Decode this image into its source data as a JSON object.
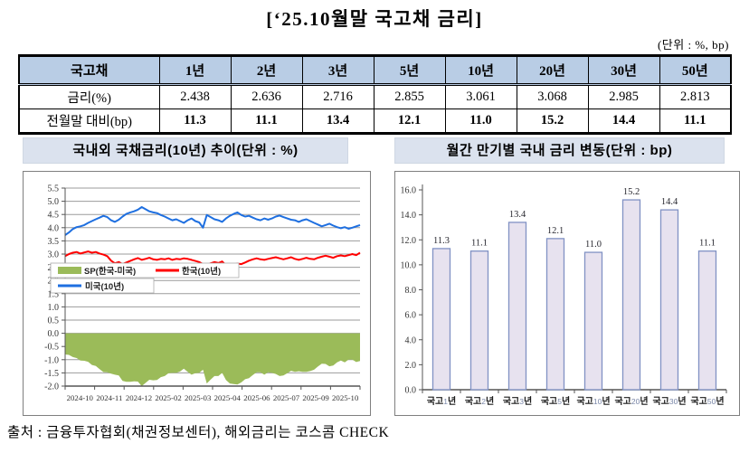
{
  "page": {
    "title": "[‘25.10월말 국고채 금리]",
    "unit_note": "(단위 : %, bp)",
    "source_note": "출처 : 금융투자협회(채권정보센터), 해외금리는 코스콤 CHECK"
  },
  "table": {
    "header": [
      "국고채",
      "1년",
      "2년",
      "3년",
      "5년",
      "10년",
      "20년",
      "30년",
      "50년"
    ],
    "rows": [
      {
        "label": "금리(%)",
        "bold": false,
        "values": [
          "2.438",
          "2.636",
          "2.716",
          "2.855",
          "3.061",
          "3.068",
          "2.985",
          "2.813"
        ]
      },
      {
        "label": "전월말 대비(bp)",
        "bold": true,
        "values": [
          "11.3",
          "11.1",
          "13.4",
          "12.1",
          "11.0",
          "15.2",
          "14.4",
          "11.1"
        ]
      }
    ],
    "header_bg": "#B9CDE5"
  },
  "left_chart": {
    "title": "국내외 국채금리(10년) 추이(단위 : %)"
  },
  "right_chart": {
    "title": "월간 만기별 국내 금리 변동(단위 : bp)"
  },
  "colors": {
    "us_line": "#1E6FE0",
    "kr_line": "#FF0000",
    "spread_area": "#9BBB59",
    "bar_fill": "#E7E2EF",
    "bar_border": "#8192C4",
    "gridline": "#9b9b9b",
    "axis": "#555555",
    "table_header_bg": "#B9CDE5",
    "panel_title_bg": "#DBE2EE"
  },
  "chart_data": [
    {
      "type": "line",
      "title": "국내외 국채금리(10년) 추이(단위 : %)",
      "ylim": [
        -2.0,
        5.5
      ],
      "ytick_step": 0.5,
      "grid": true,
      "legend_position": "inside-left",
      "x_labels": [
        "2024-10",
        "2024-11",
        "2024-12",
        "2025-02",
        "2025-03",
        "2025-04",
        "2025-06",
        "2025-07",
        "2025-09",
        "2025-10"
      ],
      "legend": [
        {
          "name": "SP(한국-미국)",
          "swatch": "area",
          "color": "#9BBB59"
        },
        {
          "name": "한국(10년)",
          "swatch": "line",
          "color": "#FF0000"
        },
        {
          "name": "미국(10년)",
          "swatch": "line",
          "color": "#1E6FE0"
        }
      ],
      "series": [
        {
          "name": "미국(10년)",
          "color": "#1E6FE0",
          "values": [
            3.72,
            3.82,
            3.95,
            4.02,
            4.05,
            4.1,
            4.18,
            4.25,
            4.32,
            4.38,
            4.45,
            4.4,
            4.28,
            4.22,
            4.3,
            4.42,
            4.52,
            4.58,
            4.62,
            4.68,
            4.78,
            4.7,
            4.62,
            4.58,
            4.55,
            4.48,
            4.42,
            4.35,
            4.28,
            4.32,
            4.25,
            4.18,
            4.28,
            4.35,
            4.25,
            4.2,
            4.0,
            4.48,
            4.4,
            4.32,
            4.28,
            4.22,
            4.35,
            4.45,
            4.52,
            4.58,
            4.48,
            4.42,
            4.45,
            4.38,
            4.32,
            4.28,
            4.35,
            4.3,
            4.35,
            4.42,
            4.46,
            4.4,
            4.35,
            4.3,
            4.28,
            4.22,
            4.28,
            4.32,
            4.25,
            4.18,
            4.12,
            4.05,
            4.1,
            4.15,
            4.08,
            4.02,
            3.98,
            4.02,
            3.96,
            4.0,
            4.05,
            4.1
          ]
        },
        {
          "name": "한국(10년)",
          "color": "#FF0000",
          "values": [
            2.92,
            3.0,
            3.05,
            3.08,
            3.02,
            3.06,
            3.1,
            3.05,
            3.08,
            3.02,
            2.98,
            2.92,
            2.75,
            2.65,
            2.7,
            2.62,
            2.68,
            2.74,
            2.8,
            2.85,
            2.78,
            2.82,
            2.86,
            2.8,
            2.78,
            2.82,
            2.8,
            2.84,
            2.78,
            2.82,
            2.8,
            2.84,
            2.82,
            2.78,
            2.74,
            2.7,
            2.62,
            2.58,
            2.65,
            2.7,
            2.66,
            2.72,
            2.58,
            2.55,
            2.6,
            2.64,
            2.62,
            2.68,
            2.75,
            2.8,
            2.84,
            2.8,
            2.78,
            2.82,
            2.85,
            2.88,
            2.84,
            2.8,
            2.84,
            2.88,
            2.82,
            2.78,
            2.82,
            2.86,
            2.82,
            2.8,
            2.86,
            2.9,
            2.94,
            2.9,
            2.86,
            2.92,
            2.95,
            2.92,
            2.96,
            3.0,
            2.96,
            3.05
          ]
        },
        {
          "name": "SP(한국-미국)",
          "color": "#9BBB59",
          "derived": "한국(10년) minus 미국(10년), drawn as area from 0"
        }
      ]
    },
    {
      "type": "bar",
      "title": "월간 만기별 국내 금리 변동(단위 : bp)",
      "categories": [
        "국고1년",
        "국고2년",
        "국고3년",
        "국고5년",
        "국고10년",
        "국고20년",
        "국고30년",
        "국고50년"
      ],
      "values": [
        11.3,
        11.1,
        13.4,
        12.1,
        11.0,
        15.2,
        14.4,
        11.1
      ],
      "value_labels": [
        "11.3",
        "11.1",
        "13.4",
        "12.1",
        "11.0",
        "15.2",
        "14.4",
        "11.1"
      ],
      "ylim": [
        0,
        16
      ],
      "ytick_step": 2,
      "grid": false,
      "bar_fill": "#E7E2EF",
      "bar_border": "#8192C4"
    }
  ]
}
